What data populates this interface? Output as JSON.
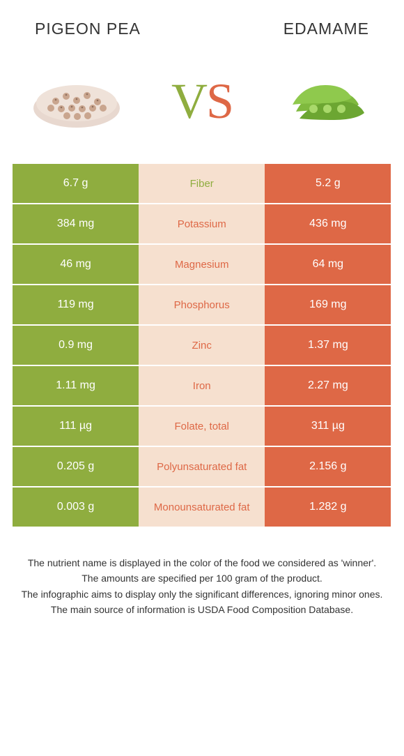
{
  "colors": {
    "left_bg": "#8fad3f",
    "right_bg": "#de6846",
    "mid_bg": "#f6e0cf",
    "left_winner_text": "#8fad3f",
    "right_winner_text": "#de6846",
    "cell_text": "#ffffff"
  },
  "header": {
    "left_title": "Pigeon pea",
    "right_title": "Edamame"
  },
  "vs": {
    "v": "V",
    "s": "S"
  },
  "rows": [
    {
      "label": "Fiber",
      "left": "6.7 g",
      "right": "5.2 g",
      "winner": "left"
    },
    {
      "label": "Potassium",
      "left": "384 mg",
      "right": "436 mg",
      "winner": "right"
    },
    {
      "label": "Magnesium",
      "left": "46 mg",
      "right": "64 mg",
      "winner": "right"
    },
    {
      "label": "Phosphorus",
      "left": "119 mg",
      "right": "169 mg",
      "winner": "right"
    },
    {
      "label": "Zinc",
      "left": "0.9 mg",
      "right": "1.37 mg",
      "winner": "right"
    },
    {
      "label": "Iron",
      "left": "1.11 mg",
      "right": "2.27 mg",
      "winner": "right"
    },
    {
      "label": "Folate, total",
      "left": "111 µg",
      "right": "311 µg",
      "winner": "right"
    },
    {
      "label": "Polyunsaturated fat",
      "left": "0.205 g",
      "right": "2.156 g",
      "winner": "right"
    },
    {
      "label": "Monounsaturated fat",
      "left": "0.003 g",
      "right": "1.282 g",
      "winner": "right"
    }
  ],
  "footer": {
    "line1": "The nutrient name is displayed in the color of the food we considered as 'winner'.",
    "line2": "The amounts are specified per 100 gram of the product.",
    "line3": "The infographic aims to display only the significant differences, ignoring minor ones.",
    "line4": "The main source of information is USDA Food Composition Database."
  }
}
